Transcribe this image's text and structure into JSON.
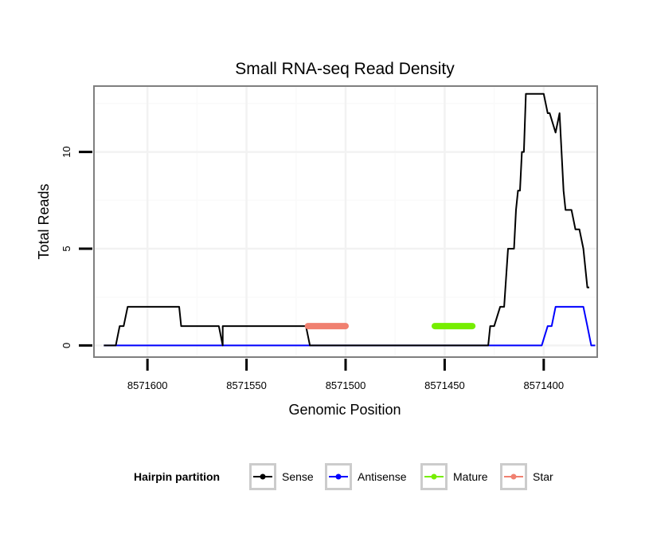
{
  "chart_data": {
    "type": "line",
    "title": "Small RNA-seq Read Density",
    "xlabel": "Genomic Position",
    "ylabel": "Total Reads",
    "x_reversed": true,
    "xlim": [
      8571627,
      8571373
    ],
    "ylim": [
      -0.6,
      13.4
    ],
    "x_ticks": [
      {
        "value": 8571600,
        "label": "8571600"
      },
      {
        "value": 8571550,
        "label": "8571550"
      },
      {
        "value": 8571500,
        "label": "8571500"
      },
      {
        "value": 8571450,
        "label": "8571450"
      },
      {
        "value": 8571400,
        "label": "8571400"
      }
    ],
    "y_ticks": [
      {
        "value": 0,
        "label": "0"
      },
      {
        "value": 5,
        "label": "5"
      },
      {
        "value": 10,
        "label": "10"
      }
    ],
    "grid": true,
    "legend": {
      "title": "Hairpin partition",
      "position": "bottom",
      "entries": [
        "Sense",
        "Antisense",
        "Mature",
        "Star"
      ]
    },
    "series": [
      {
        "name": "Sense",
        "color": "#000000",
        "x": [
          8571622,
          8571616,
          8571614,
          8571612,
          8571610,
          8571604,
          8571596,
          8571584,
          8571583,
          8571582,
          8571575,
          8571564,
          8571562,
          8571562,
          8571520,
          8571518,
          8571517,
          8571500,
          8571499,
          8571447,
          8571446,
          8571445,
          8571429,
          8571428,
          8571427,
          8571425,
          8571422,
          8571420,
          8571418,
          8571415,
          8571414,
          8571413,
          8571412,
          8571411,
          8571410,
          8571409,
          8571407,
          8571404,
          8571402,
          8571400,
          8571398,
          8571397,
          8571394,
          8571392,
          8571391,
          8571390,
          8571389,
          8571388,
          8571386,
          8571384,
          8571382,
          8571380,
          8571378,
          8571377
        ],
        "y": [
          0,
          0,
          1,
          1,
          2,
          2,
          2,
          2,
          1,
          1,
          1,
          1,
          0,
          1,
          1,
          0,
          0,
          0,
          0,
          0,
          0,
          0,
          0,
          0,
          1,
          1,
          2,
          2,
          5,
          5,
          7,
          8,
          8,
          10,
          10,
          13,
          13,
          13,
          13,
          13,
          12,
          12,
          11,
          12,
          10,
          8,
          7,
          7,
          7,
          6,
          6,
          5,
          3,
          3
        ]
      },
      {
        "name": "Antisense",
        "color": "#0000ff",
        "x": [
          8571622,
          8571401,
          8571398,
          8571396,
          8571394,
          8571388,
          8571380,
          8571378,
          8571376,
          8571374
        ],
        "y": [
          0,
          0,
          1,
          1,
          2,
          2,
          2,
          1,
          0,
          0
        ]
      },
      {
        "name": "Mature",
        "color": "#76ee00",
        "x": [
          8571455,
          8571436
        ],
        "y": [
          1,
          1
        ]
      },
      {
        "name": "Star",
        "color": "#f08070",
        "x": [
          8571519,
          8571500
        ],
        "y": [
          1,
          1
        ]
      }
    ]
  }
}
